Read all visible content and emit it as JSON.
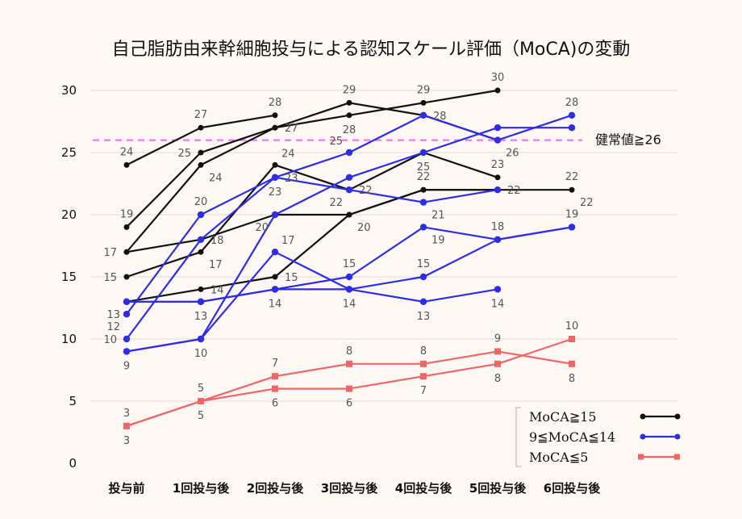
{
  "chart_data": {
    "type": "line",
    "title": "自己脂肪由来幹細胞投与による認知スケール評価（MoCA)の変動",
    "categories": [
      "投与前",
      "1回投与後",
      "2回投与後",
      "3回投与後",
      "4回投与後",
      "5回投与後",
      "6回投与後"
    ],
    "y_ticks": [
      "0",
      "5",
      "10",
      "15",
      "20",
      "25",
      "30"
    ],
    "ylim": [
      0,
      30
    ],
    "reference_line": {
      "value": 26,
      "label": "健常値≧26",
      "color": "#f06cf0"
    },
    "groups": [
      {
        "name": "MoCA≧15",
        "color": "#111111",
        "marker": "circle"
      },
      {
        "name": "9≦MoCA≦14",
        "color": "#2d2de6",
        "marker": "circle"
      },
      {
        "name": "MoCA≦5",
        "color": "#f06666",
        "marker": "square"
      }
    ],
    "series": [
      {
        "group": 0,
        "values": [
          24,
          27,
          28,
          null,
          null,
          null,
          null
        ]
      },
      {
        "group": 0,
        "values": [
          19,
          25,
          27,
          29,
          28,
          26,
          null
        ]
      },
      {
        "group": 0,
        "values": [
          17,
          24,
          27,
          28,
          29,
          30,
          null
        ]
      },
      {
        "group": 0,
        "values": [
          17,
          18,
          20,
          20,
          22,
          22,
          22
        ]
      },
      {
        "group": 0,
        "values": [
          15,
          17,
          24,
          22,
          25,
          23,
          null
        ]
      },
      {
        "group": 0,
        "values": [
          13,
          14,
          15,
          20,
          22,
          22,
          null
        ]
      },
      {
        "group": 1,
        "values": [
          12,
          20,
          23,
          22,
          21,
          22,
          null
        ]
      },
      {
        "group": 1,
        "values": [
          13,
          13,
          14,
          14,
          13,
          14,
          null
        ]
      },
      {
        "group": 1,
        "values": [
          10,
          18,
          23,
          25,
          28,
          26,
          28
        ]
      },
      {
        "group": 1,
        "values": [
          9,
          10,
          20,
          23,
          25,
          27,
          27
        ]
      },
      {
        "group": 1,
        "values": [
          9,
          10,
          17,
          14,
          15,
          18,
          19
        ]
      },
      {
        "group": 1,
        "values": [
          13,
          13,
          14,
          15,
          19,
          18,
          19
        ]
      },
      {
        "group": 2,
        "values": [
          3,
          5,
          7,
          8,
          8,
          9,
          8
        ]
      },
      {
        "group": 2,
        "values": [
          3,
          5,
          6,
          6,
          7,
          8,
          10
        ]
      }
    ],
    "data_labels": [
      {
        "text": "24",
        "cat": 0,
        "v": 24,
        "pos": "above"
      },
      {
        "text": "19",
        "cat": 0,
        "v": 19,
        "pos": "above"
      },
      {
        "text": "17",
        "cat": 0,
        "v": 17,
        "pos": "left"
      },
      {
        "text": "15",
        "cat": 0,
        "v": 15,
        "pos": "left"
      },
      {
        "text": "13",
        "cat": 0,
        "v": 13,
        "pos": "below-left"
      },
      {
        "text": "12",
        "cat": 0,
        "v": 12,
        "pos": "below-left"
      },
      {
        "text": "10",
        "cat": 0,
        "v": 10,
        "pos": "left"
      },
      {
        "text": "9",
        "cat": 0,
        "v": 9,
        "pos": "below"
      },
      {
        "text": "3",
        "cat": 0,
        "v": 3,
        "pos": "above"
      },
      {
        "text": "3",
        "cat": 0,
        "v": 3,
        "pos": "below"
      },
      {
        "text": "27",
        "cat": 1,
        "v": 27,
        "pos": "above"
      },
      {
        "text": "25",
        "cat": 1,
        "v": 25,
        "pos": "left"
      },
      {
        "text": "24",
        "cat": 1,
        "v": 24,
        "pos": "below-right"
      },
      {
        "text": "20",
        "cat": 1,
        "v": 20,
        "pos": "above"
      },
      {
        "text": "18",
        "cat": 1,
        "v": 18,
        "pos": "right"
      },
      {
        "text": "17",
        "cat": 1,
        "v": 17,
        "pos": "below-right"
      },
      {
        "text": "14",
        "cat": 1,
        "v": 14,
        "pos": "right"
      },
      {
        "text": "13",
        "cat": 1,
        "v": 13,
        "pos": "below"
      },
      {
        "text": "10",
        "cat": 1,
        "v": 10,
        "pos": "below"
      },
      {
        "text": "5",
        "cat": 1,
        "v": 5,
        "pos": "above"
      },
      {
        "text": "5",
        "cat": 1,
        "v": 5,
        "pos": "below"
      },
      {
        "text": "28",
        "cat": 2,
        "v": 28,
        "pos": "above"
      },
      {
        "text": "27",
        "cat": 2,
        "v": 27,
        "pos": "right"
      },
      {
        "text": "24",
        "cat": 2,
        "v": 24,
        "pos": "above-right"
      },
      {
        "text": "23",
        "cat": 2,
        "v": 23,
        "pos": "right"
      },
      {
        "text": "23",
        "cat": 2,
        "v": 23,
        "pos": "below"
      },
      {
        "text": "20",
        "cat": 2,
        "v": 20,
        "pos": "below-left"
      },
      {
        "text": "17",
        "cat": 2,
        "v": 17,
        "pos": "above-right"
      },
      {
        "text": "15",
        "cat": 2,
        "v": 15,
        "pos": "right"
      },
      {
        "text": "14",
        "cat": 2,
        "v": 14,
        "pos": "below"
      },
      {
        "text": "7",
        "cat": 2,
        "v": 7,
        "pos": "above"
      },
      {
        "text": "6",
        "cat": 2,
        "v": 6,
        "pos": "below"
      },
      {
        "text": "29",
        "cat": 3,
        "v": 29,
        "pos": "above"
      },
      {
        "text": "28",
        "cat": 3,
        "v": 28,
        "pos": "below"
      },
      {
        "text": "25",
        "cat": 3,
        "v": 25,
        "pos": "above-left"
      },
      {
        "text": "22",
        "cat": 3,
        "v": 22,
        "pos": "right"
      },
      {
        "text": "22",
        "cat": 3,
        "v": 22,
        "pos": "below-left"
      },
      {
        "text": "20",
        "cat": 3,
        "v": 20,
        "pos": "below-right"
      },
      {
        "text": "15",
        "cat": 3,
        "v": 15,
        "pos": "above"
      },
      {
        "text": "14",
        "cat": 3,
        "v": 14,
        "pos": "below"
      },
      {
        "text": "8",
        "cat": 3,
        "v": 8,
        "pos": "above"
      },
      {
        "text": "6",
        "cat": 3,
        "v": 6,
        "pos": "below"
      },
      {
        "text": "29",
        "cat": 4,
        "v": 29,
        "pos": "above"
      },
      {
        "text": "28",
        "cat": 4,
        "v": 28,
        "pos": "right"
      },
      {
        "text": "25",
        "cat": 4,
        "v": 25,
        "pos": "below"
      },
      {
        "text": "22",
        "cat": 4,
        "v": 22,
        "pos": "above"
      },
      {
        "text": "21",
        "cat": 4,
        "v": 21,
        "pos": "below-right"
      },
      {
        "text": "19",
        "cat": 4,
        "v": 19,
        "pos": "below-right"
      },
      {
        "text": "15",
        "cat": 4,
        "v": 15,
        "pos": "above"
      },
      {
        "text": "13",
        "cat": 4,
        "v": 13,
        "pos": "below"
      },
      {
        "text": "8",
        "cat": 4,
        "v": 8,
        "pos": "above"
      },
      {
        "text": "7",
        "cat": 4,
        "v": 7,
        "pos": "below"
      },
      {
        "text": "30",
        "cat": 5,
        "v": 30,
        "pos": "above"
      },
      {
        "text": "26",
        "cat": 5,
        "v": 26,
        "pos": "below-right"
      },
      {
        "text": "23",
        "cat": 5,
        "v": 23,
        "pos": "above"
      },
      {
        "text": "22",
        "cat": 5,
        "v": 22,
        "pos": "right"
      },
      {
        "text": "18",
        "cat": 5,
        "v": 18,
        "pos": "above"
      },
      {
        "text": "14",
        "cat": 5,
        "v": 14,
        "pos": "below"
      },
      {
        "text": "9",
        "cat": 5,
        "v": 9,
        "pos": "above"
      },
      {
        "text": "8",
        "cat": 5,
        "v": 8,
        "pos": "below"
      },
      {
        "text": "28",
        "cat": 6,
        "v": 28,
        "pos": "above"
      },
      {
        "text": "22",
        "cat": 6,
        "v": 22,
        "pos": "above"
      },
      {
        "text": "22",
        "cat": 6,
        "v": 22,
        "pos": "below-right"
      },
      {
        "text": "19",
        "cat": 6,
        "v": 19,
        "pos": "above"
      },
      {
        "text": "10",
        "cat": 6,
        "v": 10,
        "pos": "above"
      },
      {
        "text": "8",
        "cat": 6,
        "v": 8,
        "pos": "below"
      }
    ],
    "grid": true,
    "legend_position": "bottom-right"
  }
}
